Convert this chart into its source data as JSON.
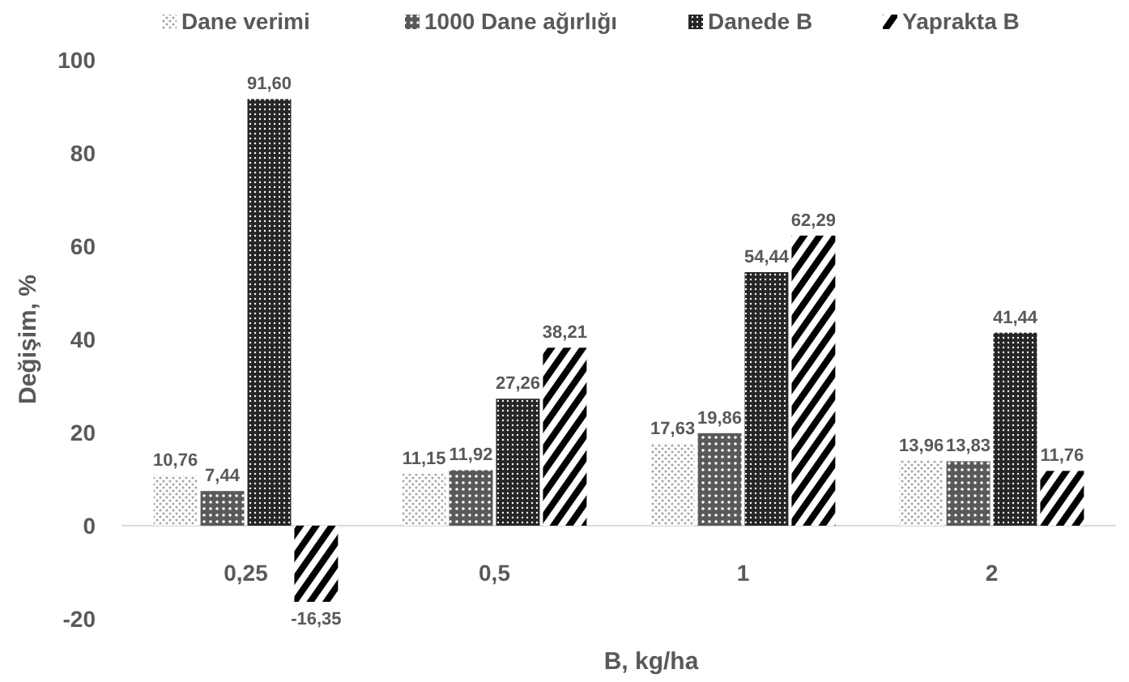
{
  "chart_data": {
    "type": "bar",
    "xlabel": "B, kg/ha",
    "ylabel": "Değişim,  %",
    "categories": [
      "0,25",
      "0,5",
      "1",
      "2"
    ],
    "series": [
      {
        "name": "Dane verimi",
        "color": "#a6a6a6",
        "values": [
          10.76,
          11.15,
          17.63,
          13.96
        ],
        "value_labels": [
          "10,76",
          "11,15",
          "17,63",
          "13,96"
        ]
      },
      {
        "name": "1000 Dane ağırlığı",
        "color": "#595959",
        "values": [
          7.44,
          11.92,
          19.86,
          13.83
        ],
        "value_labels": [
          "7,44",
          "11,92",
          "19,86",
          "13,83"
        ]
      },
      {
        "name": "Danede B",
        "color": "#262626",
        "values": [
          91.6,
          27.26,
          54.44,
          41.44
        ],
        "value_labels": [
          "91,60",
          "27,26",
          "54,44",
          "41,44"
        ]
      },
      {
        "name": "Yaprakta B",
        "color": "#000000",
        "values": [
          -16.35,
          38.21,
          62.29,
          11.76
        ],
        "value_labels": [
          "-16,35",
          "38,21",
          "62,29",
          "11,76"
        ]
      }
    ],
    "ylim": [
      -20,
      100
    ],
    "yticks": [
      {
        "value": -20,
        "label": "-20"
      },
      0,
      20,
      40,
      60,
      80,
      100
    ],
    "grid": false,
    "legend": "top"
  }
}
